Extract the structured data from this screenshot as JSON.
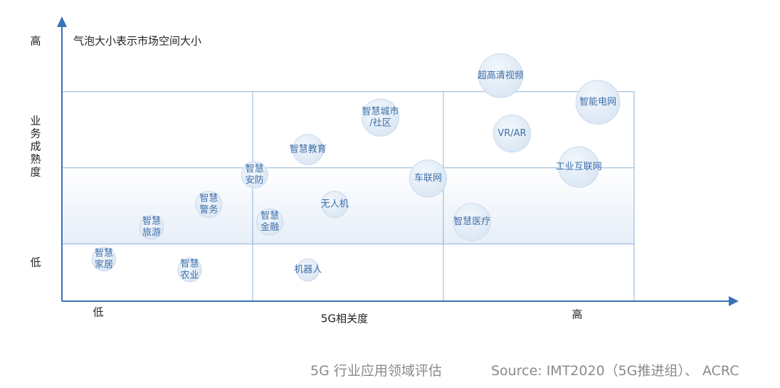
{
  "chart_data": {
    "type": "bubble",
    "title": "气泡大小表示市场空间大小",
    "xlabel": "5G相关度",
    "ylabel": "业务成熟度",
    "x_low_label": "低",
    "x_high_label": "高",
    "y_low_label": "低",
    "y_high_label": "高",
    "xlim": [
      0,
      3
    ],
    "ylim": [
      0,
      3
    ],
    "grid": true,
    "grid_x": [
      1,
      2,
      3
    ],
    "grid_y": [
      0.75,
      1.75,
      2.75
    ],
    "highlight_band": [
      0.75,
      1.75
    ],
    "axis_color": "#3a73b8",
    "grid_color": "#8fb0d6",
    "bubble_fill": "#d9e6f3",
    "bubble_label_color": "#3d6fa8",
    "points": [
      {
        "lines": [
          "智慧",
          "家居"
        ],
        "x": 0.22,
        "y": 0.55,
        "size": 0.35
      },
      {
        "lines": [
          "智慧",
          "旅游"
        ],
        "x": 0.47,
        "y": 0.97,
        "size": 0.35
      },
      {
        "lines": [
          "智慧",
          "农业"
        ],
        "x": 0.67,
        "y": 0.41,
        "size": 0.35
      },
      {
        "lines": [
          "智慧",
          "警务"
        ],
        "x": 0.77,
        "y": 1.27,
        "size": 0.39
      },
      {
        "lines": [
          "智慧",
          "安防"
        ],
        "x": 1.01,
        "y": 1.66,
        "size": 0.39
      },
      {
        "lines": [
          "智慧",
          "金融"
        ],
        "x": 1.09,
        "y": 1.04,
        "size": 0.39
      },
      {
        "lines": [
          "机器人"
        ],
        "x": 1.29,
        "y": 0.41,
        "size": 0.33
      },
      {
        "lines": [
          "智慧教育"
        ],
        "x": 1.29,
        "y": 1.99,
        "size": 0.45
      },
      {
        "lines": [
          "无人机"
        ],
        "x": 1.43,
        "y": 1.27,
        "size": 0.39
      },
      {
        "lines": [
          "智慧城市",
          "/社区"
        ],
        "x": 1.67,
        "y": 2.41,
        "size": 0.55
      },
      {
        "lines": [
          "车联网"
        ],
        "x": 1.92,
        "y": 1.61,
        "size": 0.55
      },
      {
        "lines": [
          "智慧医疗"
        ],
        "x": 2.15,
        "y": 1.04,
        "size": 0.55
      },
      {
        "lines": [
          "超高清视频"
        ],
        "x": 2.3,
        "y": 2.96,
        "size": 0.65
      },
      {
        "lines": [
          "VR/AR"
        ],
        "x": 2.36,
        "y": 2.2,
        "size": 0.55
      },
      {
        "lines": [
          "工业互联网"
        ],
        "x": 2.71,
        "y": 1.76,
        "size": 0.6
      },
      {
        "lines": [
          "智能电网"
        ],
        "x": 2.81,
        "y": 2.61,
        "size": 0.65
      }
    ]
  },
  "footer": {
    "caption": "5G 行业应用领域评估",
    "source": "Source: IMT2020（5G推进组）、 ACRC"
  }
}
